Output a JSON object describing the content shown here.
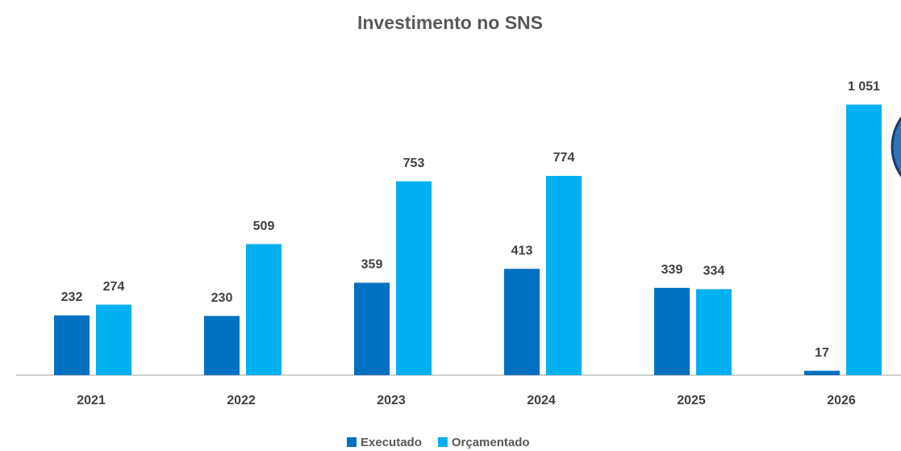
{
  "chart_data": {
    "type": "bar",
    "title": "Investimento no SNS",
    "categories": [
      "2021",
      "2022",
      "2023",
      "2024",
      "2025",
      "2026"
    ],
    "series": [
      {
        "name": "Executado",
        "color": "#0070c0",
        "values": [
          232,
          230,
          359,
          413,
          339,
          17
        ]
      },
      {
        "name": "Orçamentado",
        "color": "#00b0f0",
        "values": [
          274,
          509,
          753,
          774,
          334,
          1051
        ],
        "value_labels": [
          "274",
          "509",
          "753",
          "774",
          "334",
          "1 051"
        ]
      }
    ],
    "ylim": [
      0,
      1100
    ],
    "grid": false,
    "legend": "bottom"
  }
}
